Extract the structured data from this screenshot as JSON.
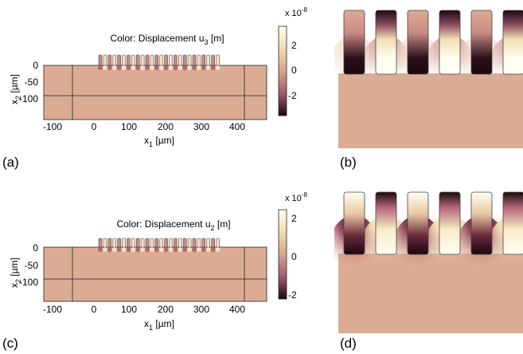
{
  "panels": [
    {
      "label": "(a)",
      "title_prefix": "Color: Displacement u",
      "title_sub": "3",
      "title_suffix": " [m]",
      "colorbar": {
        "exponent_base": "x 10",
        "exponent": "-8",
        "ticks": [
          "2",
          "0",
          "-2"
        ]
      }
    },
    {
      "label": "(b)"
    },
    {
      "label": "(c)",
      "title_prefix": "Color: Displacement u",
      "title_sub": "2",
      "title_suffix": " [m]",
      "colorbar": {
        "exponent_base": "x 10",
        "exponent": "-8",
        "ticks": [
          "2",
          "0",
          "-2"
        ]
      }
    },
    {
      "label": "(d)"
    }
  ],
  "axes": {
    "x_ticks": [
      "-100",
      "0",
      "100",
      "200",
      "300",
      "400"
    ],
    "y_ticks": [
      "0",
      "-50",
      "-100"
    ],
    "xlabel_prefix": "x",
    "xlabel_sub": "1",
    "xlabel_suffix": " [µm]",
    "ylabel_prefix": "x",
    "ylabel_sub": "2",
    "ylabel_suffix": " [µm]"
  },
  "colors": {
    "substrate": "#dcab94",
    "dark": "#1a0a10",
    "light": "#fffbe8",
    "mid": "#b5667a"
  }
}
